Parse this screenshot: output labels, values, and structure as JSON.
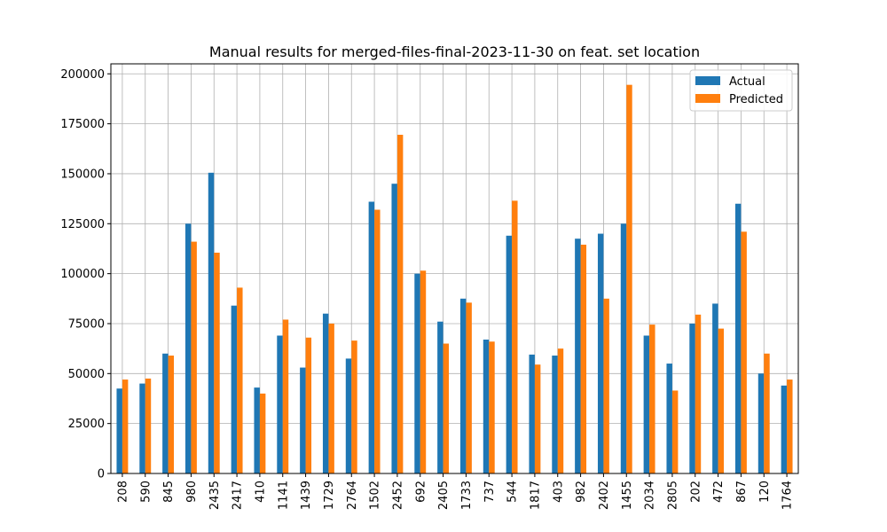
{
  "chart_data": {
    "type": "bar",
    "title": "Manual results for merged-files-final-2023-11-30 on feat. set location",
    "xlabel": "",
    "ylabel": "",
    "categories": [
      "208",
      "590",
      "845",
      "980",
      "2435",
      "2417",
      "410",
      "1141",
      "1439",
      "1729",
      "2764",
      "1502",
      "2452",
      "692",
      "2405",
      "1733",
      "737",
      "544",
      "1817",
      "403",
      "982",
      "2402",
      "1455",
      "2034",
      "2805",
      "202",
      "472",
      "867",
      "120",
      "1764"
    ],
    "series": [
      {
        "name": "Actual",
        "color": "#1f77b4",
        "values": [
          42500,
          45000,
          60000,
          125000,
          150500,
          84000,
          43000,
          69000,
          53000,
          80000,
          57500,
          136000,
          145000,
          100000,
          76000,
          87500,
          67000,
          119000,
          59500,
          59000,
          117500,
          120000,
          125000,
          69000,
          55000,
          75000,
          85000,
          135000,
          50000,
          44000
        ]
      },
      {
        "name": "Predicted",
        "color": "#ff7f0e",
        "values": [
          47000,
          47500,
          59000,
          116000,
          110500,
          93000,
          40000,
          77000,
          68000,
          75000,
          66500,
          132000,
          169500,
          101500,
          65000,
          85500,
          66000,
          136500,
          54500,
          62500,
          114500,
          87500,
          194500,
          74500,
          41500,
          79500,
          72500,
          121000,
          60000,
          47000
        ]
      }
    ],
    "ylim": [
      0,
      205000
    ],
    "yticks": [
      0,
      25000,
      50000,
      75000,
      100000,
      125000,
      150000,
      175000,
      200000
    ],
    "ytick_labels": [
      "0",
      "25000",
      "50000",
      "75000",
      "100000",
      "125000",
      "150000",
      "175000",
      "200000"
    ],
    "grid": true,
    "legend_position": "top-right"
  }
}
